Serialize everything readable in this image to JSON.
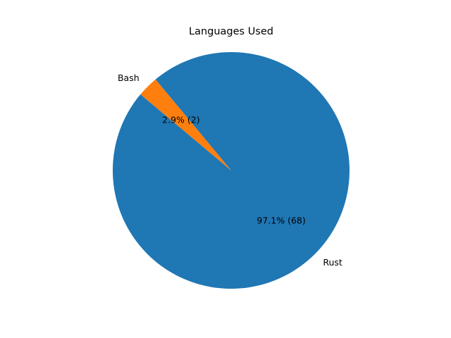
{
  "chart_data": {
    "type": "pie",
    "title": "Languages Used",
    "slices": [
      {
        "label": "Rust",
        "value": 68,
        "percent_label": "97.1% (68)",
        "color": "#1f77b4"
      },
      {
        "label": "Bash",
        "value": 2,
        "percent_label": "2.9% (2)",
        "color": "#ff7f0e"
      }
    ],
    "start_angle_deg": 140,
    "direction": "counterclockwise",
    "legend": "none"
  }
}
